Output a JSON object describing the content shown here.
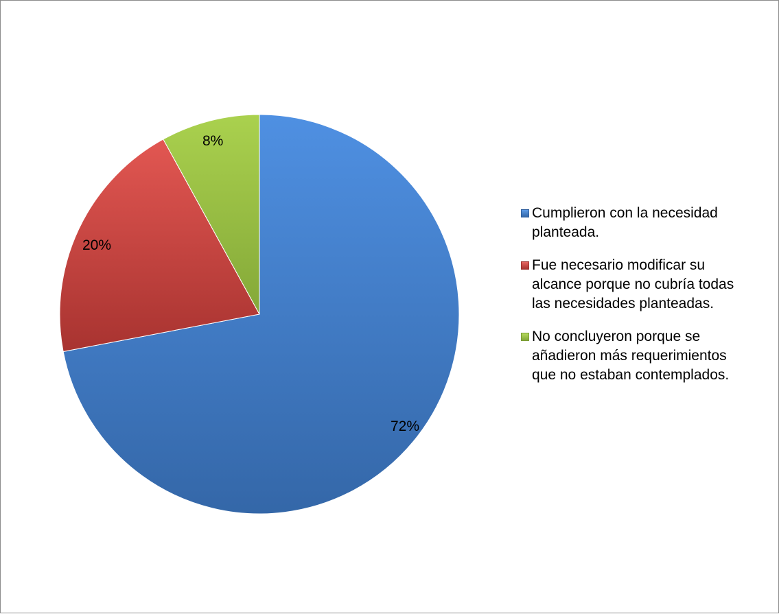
{
  "chart_data": {
    "type": "pie",
    "series": [
      {
        "values": [
          72,
          20,
          8
        ],
        "data_labels": [
          "72%",
          "20%",
          "8%"
        ]
      }
    ],
    "categories": [
      "Cumplieron con la necesidad planteada.",
      "Fue necesario modificar su alcance porque no cubría todas las necesidades planteadas.",
      "No concluyeron porque se añadieron más requerimientos que no estaban contemplados."
    ],
    "legend_position": "right",
    "colors": [
      "#4a86d4",
      "#c9403c",
      "#93bb3c"
    ]
  },
  "legend": {
    "items": [
      {
        "lines": [
          "Cumplieron con la necesidad",
          "planteada."
        ]
      },
      {
        "lines": [
          "Fue necesario modificar su",
          "alcance porque no cubría todas",
          "las necesidades planteadas."
        ]
      },
      {
        "lines": [
          "No concluyeron porque se",
          "añadieron más requerimientos",
          "que no estaban contemplados."
        ]
      }
    ]
  }
}
